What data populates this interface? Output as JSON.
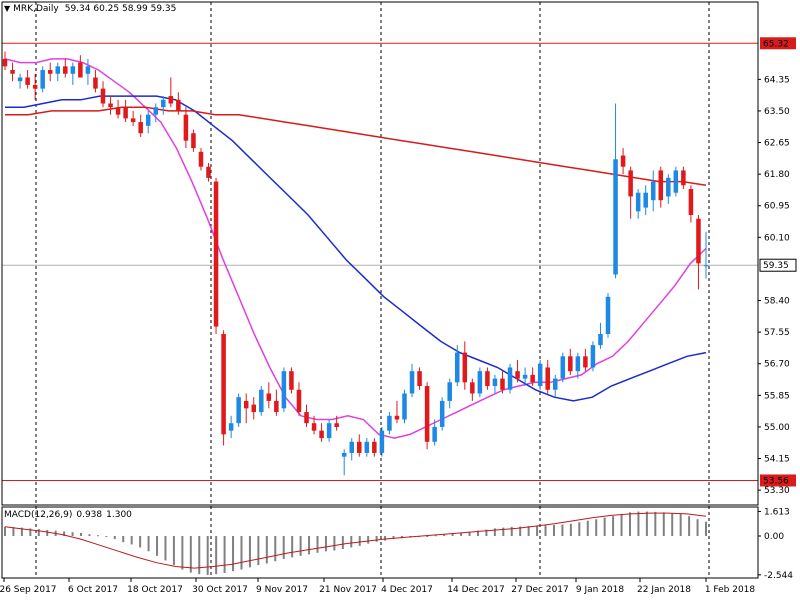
{
  "header": {
    "symbol": "MRK,Daily",
    "ohlc": "59.34 60.25 58.99 59.35"
  },
  "macd_header": {
    "label": "MACD(12,26,9)",
    "macd_value": "0.938",
    "signal_value": "1.300"
  },
  "colors": {
    "bull": "#1e88e5",
    "bear": "#e0191b",
    "ma_fast": "#e040e0",
    "ma_mid": "#1a2bd0",
    "ma_slow": "#d81b1b",
    "level_line": "#d81b1b",
    "macd_hist": "#808080",
    "macd_signal": "#c0181a",
    "grid": "#000000"
  },
  "chart_data": [
    {
      "type": "candlestick",
      "title": "MRK,Daily",
      "y_axis_ticks": [
        "65.32",
        "64.35",
        "63.50",
        "62.65",
        "61.80",
        "60.95",
        "60.10",
        "59.35",
        "58.40",
        "57.55",
        "56.70",
        "55.85",
        "55.00",
        "54.15",
        "53.56",
        "53.30"
      ],
      "ylim": [
        52.9,
        66.0
      ],
      "x_tick_labels": [
        "26 Sep 2017",
        "6 Oct 2017",
        "18 Oct 2017",
        "30 Oct 2017",
        "9 Nov 2017",
        "21 Nov 2017",
        "4 Dec 2017",
        "14 Dec 2017",
        "27 Dec 2017",
        "9 Jan 2018",
        "22 Jan 2018",
        "1 Feb 2018"
      ],
      "grid": "vertical dotted",
      "horizontal_levels": [
        {
          "value": 65.32,
          "label": "65.32"
        },
        {
          "value": 53.56,
          "label": "53.56"
        }
      ],
      "current_price": {
        "value": 59.35,
        "label": "59.35"
      },
      "candles": [
        {
          "o": 64.9,
          "h": 65.1,
          "l": 64.6,
          "c": 64.7
        },
        {
          "o": 64.6,
          "h": 64.8,
          "l": 64.3,
          "c": 64.5
        },
        {
          "o": 64.3,
          "h": 64.5,
          "l": 64.1,
          "c": 64.4
        },
        {
          "o": 64.4,
          "h": 64.6,
          "l": 64.1,
          "c": 64.2
        },
        {
          "o": 64.2,
          "h": 64.5,
          "l": 63.8,
          "c": 64.1
        },
        {
          "o": 64.1,
          "h": 64.7,
          "l": 64.0,
          "c": 64.6
        },
        {
          "o": 64.6,
          "h": 64.8,
          "l": 64.3,
          "c": 64.5
        },
        {
          "o": 64.5,
          "h": 64.8,
          "l": 64.3,
          "c": 64.7
        },
        {
          "o": 64.7,
          "h": 64.9,
          "l": 64.4,
          "c": 64.5
        },
        {
          "o": 64.5,
          "h": 64.8,
          "l": 64.2,
          "c": 64.7
        },
        {
          "o": 64.8,
          "h": 65.0,
          "l": 64.4,
          "c": 64.4
        },
        {
          "o": 64.5,
          "h": 64.9,
          "l": 64.2,
          "c": 64.7
        },
        {
          "o": 64.4,
          "h": 64.6,
          "l": 64.0,
          "c": 64.1
        },
        {
          "o": 64.1,
          "h": 64.3,
          "l": 63.6,
          "c": 63.7
        },
        {
          "o": 63.7,
          "h": 63.9,
          "l": 63.4,
          "c": 63.6
        },
        {
          "o": 63.6,
          "h": 63.8,
          "l": 63.3,
          "c": 63.4
        },
        {
          "o": 63.6,
          "h": 63.8,
          "l": 63.2,
          "c": 63.3
        },
        {
          "o": 63.3,
          "h": 63.5,
          "l": 63.1,
          "c": 63.2
        },
        {
          "o": 63.2,
          "h": 63.4,
          "l": 62.8,
          "c": 62.9
        },
        {
          "o": 63.1,
          "h": 63.5,
          "l": 62.9,
          "c": 63.4
        },
        {
          "o": 63.4,
          "h": 63.7,
          "l": 63.2,
          "c": 63.6
        },
        {
          "o": 63.6,
          "h": 63.9,
          "l": 63.4,
          "c": 63.8
        },
        {
          "o": 63.9,
          "h": 64.4,
          "l": 63.6,
          "c": 63.7
        },
        {
          "o": 63.8,
          "h": 64.0,
          "l": 63.4,
          "c": 63.5
        },
        {
          "o": 63.4,
          "h": 63.6,
          "l": 62.5,
          "c": 62.7
        },
        {
          "o": 62.9,
          "h": 63.0,
          "l": 62.4,
          "c": 62.5
        },
        {
          "o": 62.4,
          "h": 62.5,
          "l": 61.9,
          "c": 62.0
        },
        {
          "o": 62.0,
          "h": 62.1,
          "l": 61.6,
          "c": 61.7
        },
        {
          "o": 61.6,
          "h": 61.7,
          "l": 57.5,
          "c": 57.7
        },
        {
          "o": 57.5,
          "h": 57.6,
          "l": 54.5,
          "c": 54.8
        },
        {
          "o": 54.9,
          "h": 55.3,
          "l": 54.7,
          "c": 55.1
        },
        {
          "o": 55.1,
          "h": 55.9,
          "l": 55.0,
          "c": 55.8
        },
        {
          "o": 55.7,
          "h": 55.9,
          "l": 55.1,
          "c": 55.5
        },
        {
          "o": 55.6,
          "h": 55.8,
          "l": 55.2,
          "c": 55.4
        },
        {
          "o": 55.4,
          "h": 56.1,
          "l": 55.3,
          "c": 56.0
        },
        {
          "o": 55.9,
          "h": 56.2,
          "l": 55.5,
          "c": 55.7
        },
        {
          "o": 55.7,
          "h": 56.0,
          "l": 55.3,
          "c": 55.4
        },
        {
          "o": 55.5,
          "h": 56.6,
          "l": 55.4,
          "c": 56.5
        },
        {
          "o": 56.5,
          "h": 56.6,
          "l": 55.9,
          "c": 56.0
        },
        {
          "o": 56.0,
          "h": 56.2,
          "l": 55.3,
          "c": 55.4
        },
        {
          "o": 55.4,
          "h": 55.6,
          "l": 55.0,
          "c": 55.1
        },
        {
          "o": 55.1,
          "h": 55.3,
          "l": 54.8,
          "c": 54.9
        },
        {
          "o": 54.9,
          "h": 55.1,
          "l": 54.6,
          "c": 54.7
        },
        {
          "o": 54.7,
          "h": 55.2,
          "l": 54.6,
          "c": 55.1
        },
        {
          "o": 55.1,
          "h": 55.3,
          "l": 54.9,
          "c": 55.0
        },
        {
          "o": 54.2,
          "h": 54.4,
          "l": 53.7,
          "c": 54.3
        },
        {
          "o": 54.3,
          "h": 54.7,
          "l": 54.1,
          "c": 54.6
        },
        {
          "o": 54.6,
          "h": 54.8,
          "l": 54.2,
          "c": 54.3
        },
        {
          "o": 54.3,
          "h": 54.7,
          "l": 54.2,
          "c": 54.6
        },
        {
          "o": 54.6,
          "h": 54.7,
          "l": 54.2,
          "c": 54.3
        },
        {
          "o": 54.3,
          "h": 55.0,
          "l": 54.2,
          "c": 54.9
        },
        {
          "o": 54.9,
          "h": 55.4,
          "l": 54.8,
          "c": 55.3
        },
        {
          "o": 55.3,
          "h": 55.7,
          "l": 55.1,
          "c": 55.2
        },
        {
          "o": 55.2,
          "h": 56.0,
          "l": 55.1,
          "c": 55.9
        },
        {
          "o": 55.9,
          "h": 56.7,
          "l": 55.8,
          "c": 56.5
        },
        {
          "o": 56.5,
          "h": 56.6,
          "l": 56.0,
          "c": 56.1
        },
        {
          "o": 56.1,
          "h": 56.2,
          "l": 54.4,
          "c": 54.6
        },
        {
          "o": 54.6,
          "h": 55.2,
          "l": 54.5,
          "c": 55.0
        },
        {
          "o": 55.0,
          "h": 55.8,
          "l": 54.9,
          "c": 55.7
        },
        {
          "o": 55.7,
          "h": 56.3,
          "l": 55.5,
          "c": 56.2
        },
        {
          "o": 56.2,
          "h": 57.2,
          "l": 56.1,
          "c": 57.0
        },
        {
          "o": 57.0,
          "h": 57.3,
          "l": 56.0,
          "c": 56.2
        },
        {
          "o": 56.2,
          "h": 56.3,
          "l": 55.7,
          "c": 55.9
        },
        {
          "o": 55.9,
          "h": 56.6,
          "l": 55.8,
          "c": 56.5
        },
        {
          "o": 56.5,
          "h": 56.6,
          "l": 56.0,
          "c": 56.1
        },
        {
          "o": 56.1,
          "h": 56.4,
          "l": 55.9,
          "c": 56.3
        },
        {
          "o": 56.3,
          "h": 56.5,
          "l": 55.9,
          "c": 56.0
        },
        {
          "o": 56.0,
          "h": 56.7,
          "l": 55.9,
          "c": 56.6
        },
        {
          "o": 56.5,
          "h": 56.8,
          "l": 56.2,
          "c": 56.3
        },
        {
          "o": 56.3,
          "h": 56.6,
          "l": 56.1,
          "c": 56.4
        },
        {
          "o": 56.4,
          "h": 56.6,
          "l": 56.1,
          "c": 56.2
        },
        {
          "o": 56.1,
          "h": 56.8,
          "l": 56.0,
          "c": 56.7
        },
        {
          "o": 56.6,
          "h": 56.8,
          "l": 55.9,
          "c": 56.0
        },
        {
          "o": 56.0,
          "h": 56.4,
          "l": 55.8,
          "c": 56.3
        },
        {
          "o": 56.3,
          "h": 57.0,
          "l": 56.2,
          "c": 56.9
        },
        {
          "o": 56.9,
          "h": 57.1,
          "l": 56.4,
          "c": 56.5
        },
        {
          "o": 56.5,
          "h": 57.0,
          "l": 56.3,
          "c": 56.9
        },
        {
          "o": 56.9,
          "h": 57.1,
          "l": 56.5,
          "c": 56.6
        },
        {
          "o": 56.6,
          "h": 57.3,
          "l": 56.5,
          "c": 57.2
        },
        {
          "o": 57.2,
          "h": 57.8,
          "l": 57.1,
          "c": 57.5
        },
        {
          "o": 57.5,
          "h": 58.6,
          "l": 57.4,
          "c": 58.5
        },
        {
          "o": 59.1,
          "h": 63.7,
          "l": 59.0,
          "c": 62.2
        },
        {
          "o": 62.3,
          "h": 62.5,
          "l": 61.8,
          "c": 62.0
        },
        {
          "o": 61.9,
          "h": 62.0,
          "l": 60.6,
          "c": 61.2
        },
        {
          "o": 60.8,
          "h": 61.4,
          "l": 60.6,
          "c": 61.3
        },
        {
          "o": 60.9,
          "h": 61.5,
          "l": 60.7,
          "c": 61.3
        },
        {
          "o": 61.1,
          "h": 61.9,
          "l": 60.8,
          "c": 61.6
        },
        {
          "o": 61.9,
          "h": 62.0,
          "l": 60.9,
          "c": 61.1
        },
        {
          "o": 61.2,
          "h": 61.8,
          "l": 61.0,
          "c": 61.7
        },
        {
          "o": 61.3,
          "h": 62.0,
          "l": 61.2,
          "c": 61.9
        },
        {
          "o": 61.9,
          "h": 62.0,
          "l": 61.4,
          "c": 61.5
        },
        {
          "o": 61.4,
          "h": 61.5,
          "l": 60.5,
          "c": 60.7
        },
        {
          "o": 60.6,
          "h": 60.7,
          "l": 58.7,
          "c": 59.4
        },
        {
          "o": 59.34,
          "h": 60.25,
          "l": 58.99,
          "c": 59.35
        }
      ],
      "series": [
        {
          "type": "line",
          "color": "#e040e0",
          "values": [
            64.9,
            64.8,
            64.8,
            64.9,
            64.9,
            64.8,
            64.6,
            64.3,
            64.0,
            63.6,
            63.2,
            62.5,
            61.6,
            60.6,
            59.5,
            58.5,
            57.5,
            56.6,
            55.8,
            55.3,
            55.2,
            55.2,
            55.3,
            55.2,
            54.8,
            54.7,
            54.8,
            55.0,
            55.2,
            55.4,
            55.6,
            55.8,
            56.0,
            56.1,
            56.2,
            56.2,
            56.3,
            56.4,
            56.7,
            56.9,
            57.3,
            57.8,
            58.3,
            58.8,
            59.4,
            59.8
          ]
        },
        {
          "type": "line",
          "color": "#1a2bd0",
          "values": [
            63.6,
            63.6,
            63.7,
            63.8,
            63.8,
            63.9,
            63.9,
            63.9,
            63.9,
            63.8,
            63.5,
            63.1,
            62.7,
            62.2,
            61.7,
            61.2,
            60.7,
            60.1,
            59.5,
            59.0,
            58.5,
            58.1,
            57.7,
            57.3,
            57.0,
            56.8,
            56.6,
            56.3,
            56.0,
            55.8,
            55.7,
            55.8,
            56.1,
            56.3,
            56.5,
            56.7,
            56.9,
            57.0
          ]
        },
        {
          "type": "line",
          "color": "#d81b1b",
          "values": [
            63.4,
            63.4,
            63.5,
            63.5,
            63.5,
            63.6,
            63.6,
            63.5,
            63.5,
            63.4,
            63.4,
            63.3,
            63.2,
            63.1,
            63.0,
            62.9,
            62.8,
            62.7,
            62.6,
            62.5,
            62.4,
            62.3,
            62.2,
            62.1,
            62.0,
            61.9,
            61.8,
            61.7,
            61.6,
            61.6,
            61.5
          ]
        }
      ]
    },
    {
      "type": "bar",
      "title": "MACD(12,26,9) 0.938 1.300",
      "y_axis_ticks": [
        "1.613",
        "0.00",
        "-2.544"
      ],
      "ylim": [
        -2.75,
        1.9
      ],
      "values": [
        0.6,
        0.58,
        0.55,
        0.5,
        0.45,
        0.4,
        0.35,
        0.3,
        0.25,
        0.2,
        0.12,
        0.05,
        -0.05,
        -0.2,
        -0.4,
        -0.55,
        -0.75,
        -1.0,
        -1.3,
        -1.6,
        -1.9,
        -2.2,
        -2.4,
        -2.5,
        -2.55,
        -2.5,
        -2.42,
        -2.3,
        -2.2,
        -2.05,
        -1.9,
        -1.8,
        -1.65,
        -1.5,
        -1.4,
        -1.3,
        -1.2,
        -1.1,
        -1.0,
        -0.95,
        -0.85,
        -0.75,
        -0.65,
        -0.5,
        -0.38,
        -0.3,
        -0.2,
        -0.15,
        -0.1,
        -0.05,
        0.0,
        0.05,
        0.1,
        0.15,
        0.2,
        0.28,
        0.35,
        0.42,
        0.5,
        0.55,
        0.6,
        0.62,
        0.65,
        0.68,
        0.7,
        0.72,
        0.75,
        0.8,
        0.9,
        1.0,
        1.1,
        1.2,
        1.3,
        1.45,
        1.55,
        1.6,
        1.6,
        1.58,
        1.55,
        1.5,
        1.45,
        1.3,
        1.1,
        0.938
      ],
      "series": [
        {
          "type": "line",
          "color": "#c0181a",
          "values": [
            0.6,
            0.45,
            0.3,
            0.1,
            -0.2,
            -0.6,
            -1.0,
            -1.4,
            -1.75,
            -2.0,
            -2.1,
            -2.0,
            -1.85,
            -1.6,
            -1.35,
            -1.1,
            -0.9,
            -0.7,
            -0.5,
            -0.35,
            -0.2,
            -0.1,
            0.0,
            0.1,
            0.2,
            0.3,
            0.4,
            0.5,
            0.65,
            0.8,
            1.0,
            1.2,
            1.35,
            1.45,
            1.5,
            1.5,
            1.45,
            1.3
          ]
        }
      ]
    }
  ]
}
